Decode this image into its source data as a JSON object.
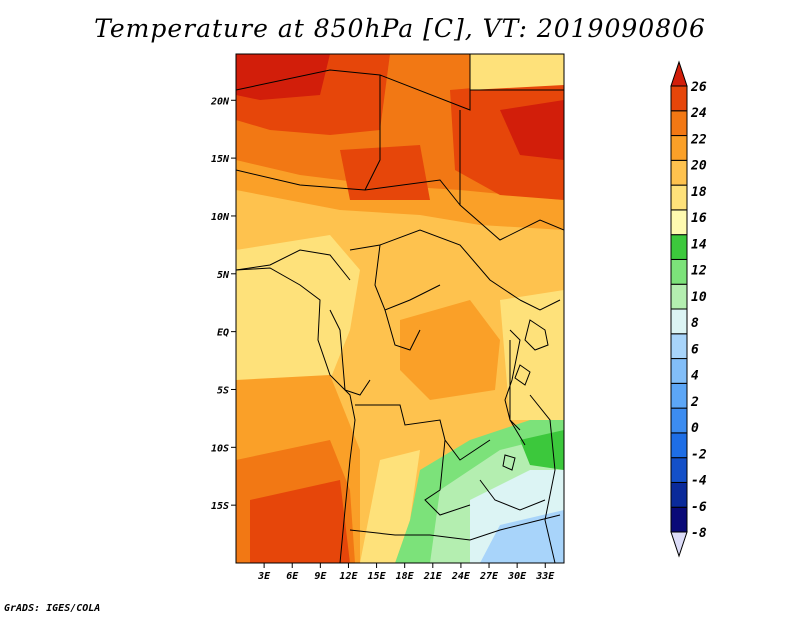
{
  "title": "Temperature at 850hPa [C], VT: 2019090806",
  "footer": "GrADS: IGES/COLA",
  "map": {
    "lon_range": [
      0,
      35
    ],
    "lat_range": [
      -20,
      24
    ],
    "lat_ticks": [
      {
        "lat": 20,
        "label": "20N"
      },
      {
        "lat": 15,
        "label": "15N"
      },
      {
        "lat": 10,
        "label": "10N"
      },
      {
        "lat": 5,
        "label": "5N"
      },
      {
        "lat": 0,
        "label": "EQ"
      },
      {
        "lat": -5,
        "label": "5S"
      },
      {
        "lat": -10,
        "label": "10S"
      },
      {
        "lat": -15,
        "label": "15S"
      }
    ],
    "lon_ticks": [
      {
        "lon": 3,
        "label": "3E"
      },
      {
        "lon": 6,
        "label": "6E"
      },
      {
        "lon": 9,
        "label": "9E"
      },
      {
        "lon": 12,
        "label": "12E"
      },
      {
        "lon": 15,
        "label": "15E"
      },
      {
        "lon": 18,
        "label": "18E"
      },
      {
        "lon": 21,
        "label": "21E"
      },
      {
        "lon": 24,
        "label": "24E"
      },
      {
        "lon": 27,
        "label": "27E"
      },
      {
        "lon": 30,
        "label": "30E"
      },
      {
        "lon": 33,
        "label": "33E"
      }
    ]
  },
  "colorbar": {
    "levels": [
      "-8",
      "-6",
      "-4",
      "-2",
      "0",
      "2",
      "4",
      "6",
      "8",
      "10",
      "12",
      "14",
      "16",
      "18",
      "20",
      "22",
      "24",
      "26"
    ],
    "colors": [
      "#dcdcf8",
      "#0a0a78",
      "#0a2a9a",
      "#1450c8",
      "#1e6ee6",
      "#3c8cf0",
      "#5ca6f6",
      "#82bef8",
      "#a8d4fa",
      "#dcf4f4",
      "#b4eeb0",
      "#7ce27a",
      "#3cc83c",
      "#fefab0",
      "#fee17a",
      "#fec24e",
      "#faa028",
      "#f27814",
      "#e6460a",
      "#d21e0a"
    ]
  }
}
